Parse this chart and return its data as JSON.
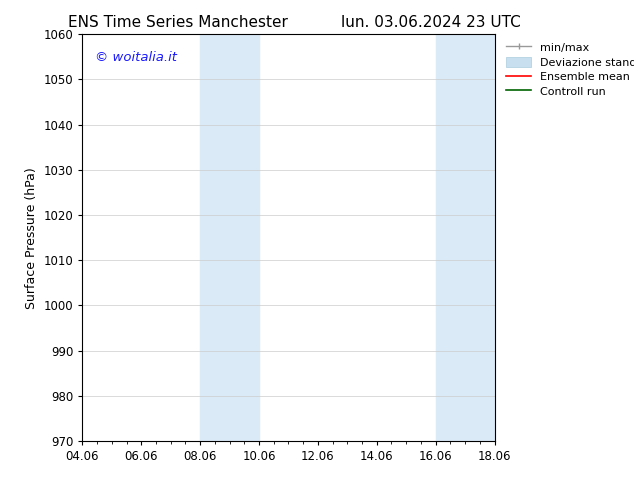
{
  "title_left": "ENS Time Series Manchester",
  "title_right": "lun. 03.06.2024 23 UTC",
  "ylabel": "Surface Pressure (hPa)",
  "ylim": [
    970,
    1060
  ],
  "yticks": [
    970,
    980,
    990,
    1000,
    1010,
    1020,
    1030,
    1040,
    1050,
    1060
  ],
  "xticks": [
    "04.06",
    "06.06",
    "08.06",
    "10.06",
    "12.06",
    "14.06",
    "16.06",
    "18.06"
  ],
  "xtick_positions": [
    0,
    2,
    4,
    6,
    8,
    10,
    12,
    14
  ],
  "shade_regions": [
    {
      "x_start": 4,
      "x_end": 6
    },
    {
      "x_start": 12,
      "x_end": 14
    }
  ],
  "shade_color": "#daeaf7",
  "watermark_text": "© woitalia.it",
  "watermark_color": "#1a1aff",
  "bg_color": "#ffffff",
  "grid_color": "#cccccc",
  "title_fontsize": 11,
  "label_fontsize": 9,
  "tick_fontsize": 8.5,
  "legend_fontsize": 8
}
